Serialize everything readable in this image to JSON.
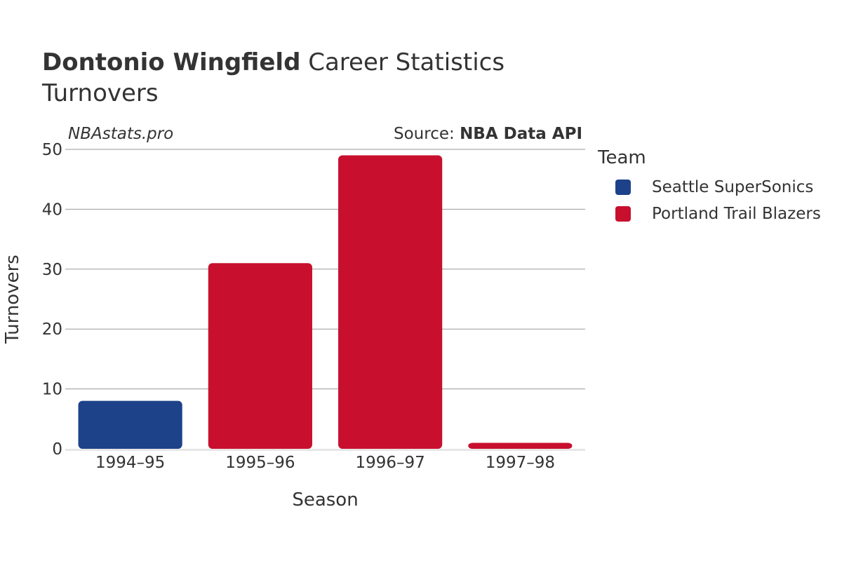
{
  "header": {
    "title_bold": "Dontonio Wingfield",
    "title_rest": "Career Statistics",
    "subtitle": "Turnovers",
    "watermark": "NBAstats.pro",
    "source_prefix": "Source: ",
    "source_name": "NBA Data API"
  },
  "legend": {
    "title": "Team",
    "items": [
      {
        "label": "Seattle SuperSonics",
        "color": "#1D428A"
      },
      {
        "label": "Portland Trail Blazers",
        "color": "#C8102E"
      }
    ]
  },
  "chart_data": {
    "type": "bar",
    "title": "Dontonio Wingfield Career Statistics",
    "subtitle": "Turnovers",
    "xlabel": "Season",
    "ylabel": "Turnovers",
    "categories": [
      "1994–95",
      "1995–96",
      "1996–97",
      "1997–98"
    ],
    "series": [
      {
        "name": "Seattle SuperSonics",
        "color": "#1D428A",
        "values": [
          8,
          null,
          null,
          null
        ]
      },
      {
        "name": "Portland Trail Blazers",
        "color": "#C8102E",
        "values": [
          null,
          31,
          49,
          1
        ]
      }
    ],
    "ylim": [
      0,
      50
    ],
    "yticks": [
      0,
      10,
      20,
      30,
      40,
      50
    ],
    "grid": true,
    "legend_position": "right"
  }
}
